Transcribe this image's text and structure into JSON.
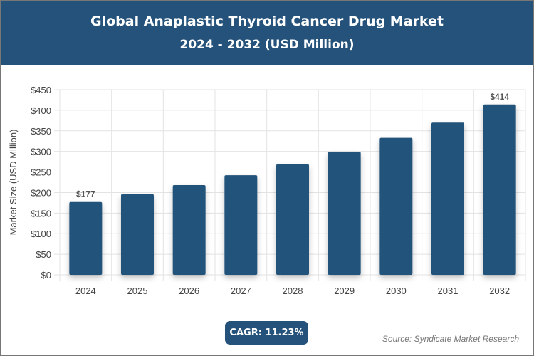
{
  "header": {
    "title": "Global Anaplastic Thyroid Cancer Drug Market",
    "subtitle": "2024 - 2032 (USD Million)"
  },
  "chart_data": {
    "type": "bar",
    "title": "Global Anaplastic Thyroid Cancer Drug Market",
    "subtitle": "2024 - 2032 (USD Million)",
    "categories": [
      "2024",
      "2025",
      "2026",
      "2027",
      "2028",
      "2029",
      "2030",
      "2031",
      "2032"
    ],
    "values": [
      177,
      196,
      218,
      242,
      269,
      299,
      333,
      370,
      414
    ],
    "data_labels": {
      "0": "$177",
      "8": "$414"
    },
    "xlabel": "",
    "ylabel": "Market Size (USD Million)",
    "ylim": [
      0,
      450
    ],
    "yticks": [
      0,
      50,
      100,
      150,
      200,
      250,
      300,
      350,
      400,
      450
    ],
    "ytick_labels": [
      "$0",
      "$50",
      "$100",
      "$150",
      "$200",
      "$250",
      "$300",
      "$350",
      "$400",
      "$450"
    ],
    "grid": true,
    "bar_color": "#24527a"
  },
  "footer": {
    "cagr": "CAGR: 11.23%",
    "source": "Source: Syndicate Market Research"
  },
  "colors": {
    "header": "#24527a",
    "accent": "#24527a"
  }
}
